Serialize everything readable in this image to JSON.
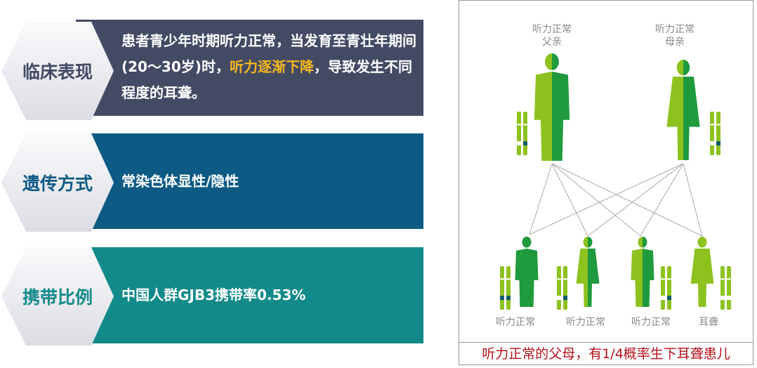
{
  "panels": [
    {
      "label": "临床表现",
      "text_before": "患者青少年时期听力正常，当发育至青壮年期间(20～30岁)时，",
      "highlight": "听力逐渐下降",
      "text_after": "，导致发生不同程度的耳聋。",
      "bg": "#434a64",
      "label_color": "#434a64"
    },
    {
      "label": "遗传方式",
      "text": "常染色体显性/隐性",
      "bg": "#0d5a84",
      "label_color": "#0d5a84"
    },
    {
      "label": "携带比例",
      "text": "中国人群GJB3携带率0.53%",
      "bg": "#138a8a",
      "label_color": "#138a8a"
    }
  ],
  "diagram": {
    "father_label": [
      "听力正常",
      "父亲"
    ],
    "mother_label": [
      "听力正常",
      "母亲"
    ],
    "children": [
      "听力正常",
      "听力正常",
      "听力正常",
      "耳聋"
    ],
    "caption": "听力正常的父母，有1/4概率生下耳聋患儿",
    "colors": {
      "light": "#8dc21f",
      "dark": "#1f9a3c",
      "marker": "#0d5a6e",
      "caption": "#b3121c"
    }
  }
}
